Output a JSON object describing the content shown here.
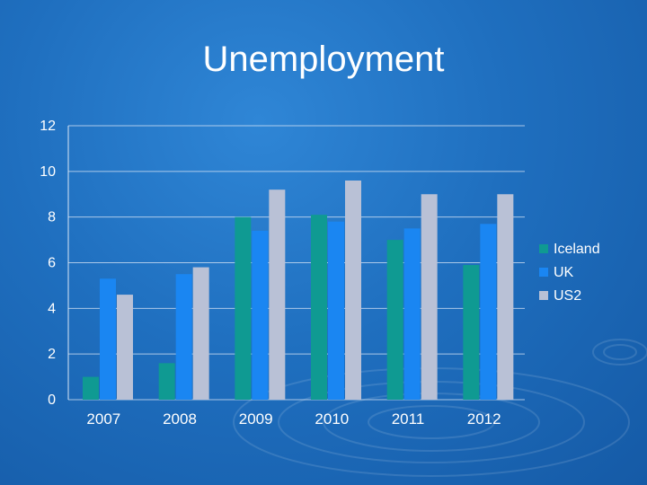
{
  "slide": {
    "title": "Unemployment"
  },
  "chart_data": {
    "type": "bar",
    "title": "Unemployment",
    "categories": [
      "2007",
      "2008",
      "2009",
      "2010",
      "2011",
      "2012"
    ],
    "ylim": [
      0,
      12
    ],
    "yticks": [
      0,
      2,
      4,
      6,
      8,
      10,
      12
    ],
    "grid": true,
    "legend_position": "right",
    "series": [
      {
        "name": "Iceland",
        "color": "#0f9a92",
        "values": [
          1.0,
          1.6,
          8.0,
          8.1,
          7.0,
          5.9
        ]
      },
      {
        "name": "UK",
        "color": "#1a86f2",
        "values": [
          5.3,
          5.5,
          7.4,
          7.8,
          7.5,
          7.7
        ]
      },
      {
        "name": "US2",
        "color": "#b9c1d6",
        "values": [
          4.6,
          5.8,
          9.2,
          9.6,
          9.0,
          9.0
        ]
      }
    ]
  }
}
